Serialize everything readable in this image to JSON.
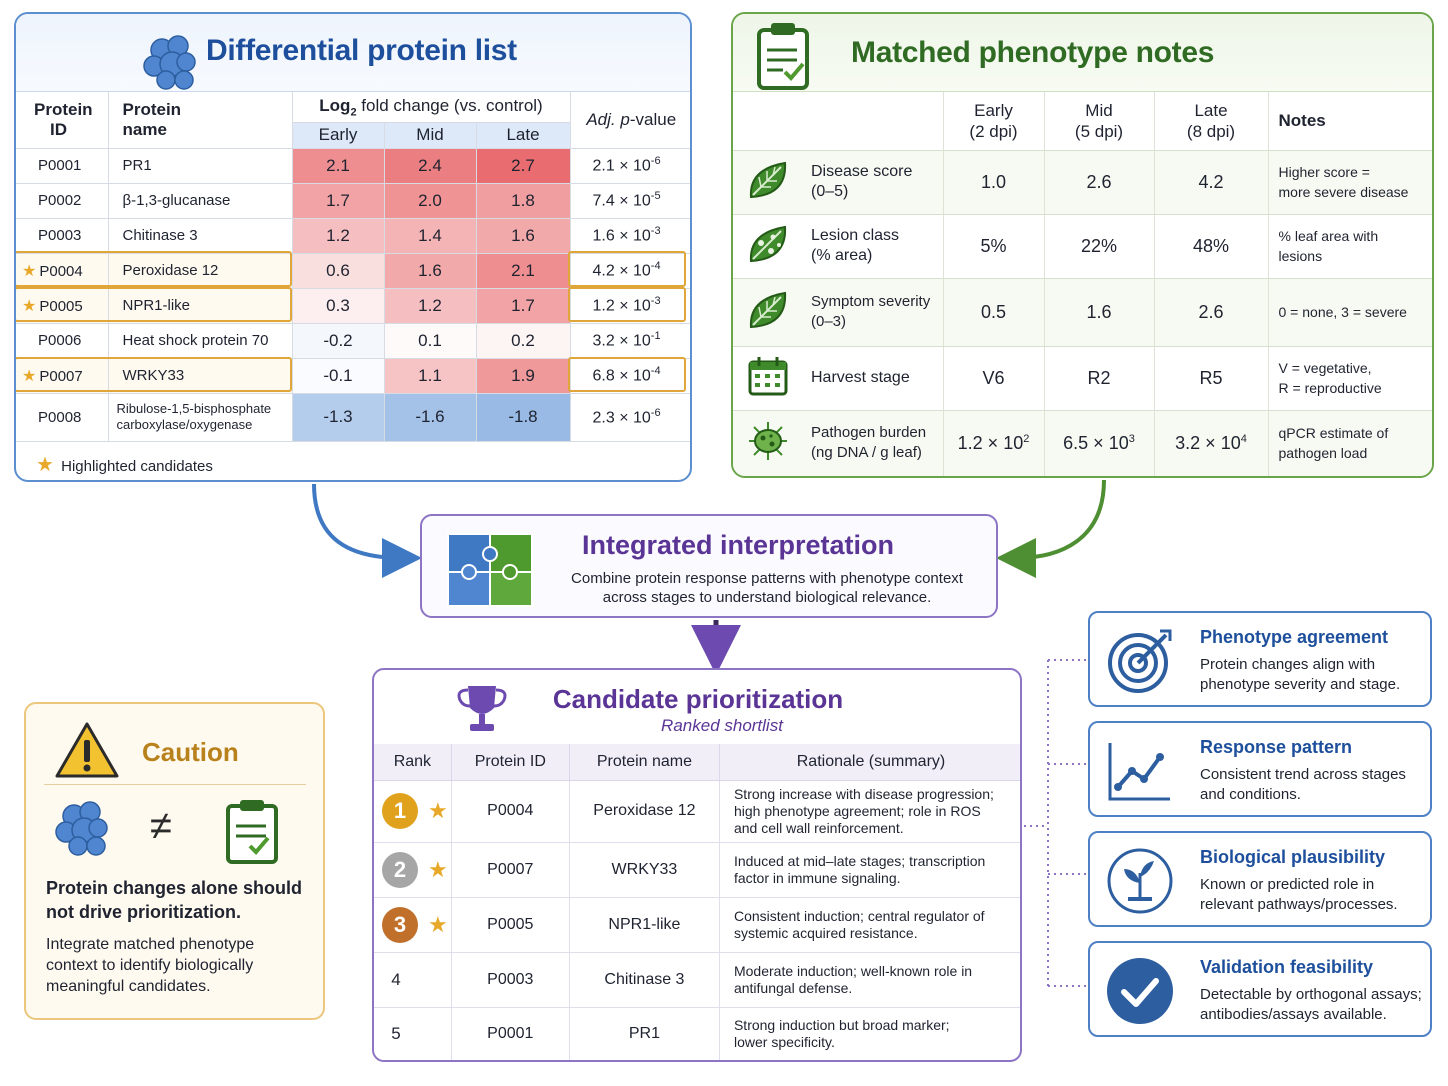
{
  "protein_panel": {
    "title": "Differential protein list",
    "col_id": [
      "Protein",
      "ID"
    ],
    "col_name": [
      "Protein",
      "name"
    ],
    "col_fc": "fold change (vs. control)",
    "col_fc_prefix": "Log",
    "col_fc_sub": "2",
    "stages": [
      "Early",
      "Mid",
      "Late"
    ],
    "col_p_prefix": "Adj. ",
    "col_p_italic": "p",
    "col_p_suffix": "-value",
    "rows": [
      {
        "id": "P0001",
        "name": "PR1",
        "early": "2.1",
        "mid": "2.4",
        "late": "2.7",
        "p_mant": "2.1 × 10",
        "p_exp": "-6",
        "highlight": false
      },
      {
        "id": "P0002",
        "name": "β-1,3-glucanase",
        "early": "1.7",
        "mid": "2.0",
        "late": "1.8",
        "p_mant": "7.4 × 10",
        "p_exp": "-5",
        "highlight": false
      },
      {
        "id": "P0003",
        "name": "Chitinase 3",
        "early": "1.2",
        "mid": "1.4",
        "late": "1.6",
        "p_mant": "1.6 × 10",
        "p_exp": "-3",
        "highlight": false
      },
      {
        "id": "P0004",
        "name": "Peroxidase 12",
        "early": "0.6",
        "mid": "1.6",
        "late": "2.1",
        "p_mant": "4.2 × 10",
        "p_exp": "-4",
        "highlight": true
      },
      {
        "id": "P0005",
        "name": "NPR1-like",
        "early": "0.3",
        "mid": "1.2",
        "late": "1.7",
        "p_mant": "1.2 × 10",
        "p_exp": "-3",
        "highlight": true
      },
      {
        "id": "P0006",
        "name": "Heat shock protein 70",
        "early": "-0.2",
        "mid": "0.1",
        "late": "0.2",
        "p_mant": "3.2 × 10",
        "p_exp": "-1",
        "highlight": false
      },
      {
        "id": "P0007",
        "name": "WRKY33",
        "early": "-0.1",
        "mid": "1.1",
        "late": "1.9",
        "p_mant": "6.8 × 10",
        "p_exp": "-4",
        "highlight": true
      },
      {
        "id": "P0008",
        "name": "Ribulose-1,5-bisphosphate",
        "name2": "carboxylase/oxygenase",
        "early": "-1.3",
        "mid": "-1.6",
        "late": "-1.8",
        "p_mant": "2.3 × 10",
        "p_exp": "-6",
        "highlight": false
      }
    ],
    "legend": "Highlighted candidates",
    "colors": {
      "pos_strong": "#e8686b",
      "neg_strong": "#5f93d6"
    }
  },
  "phenotype_panel": {
    "title": "Matched phenotype notes",
    "stage_headers": [
      {
        "name": "Early",
        "when": "(2 dpi)"
      },
      {
        "name": "Mid",
        "when": "(5 dpi)"
      },
      {
        "name": "Late",
        "when": "(8 dpi)"
      }
    ],
    "notes_header": "Notes",
    "rows": [
      {
        "icon": "leaf-icon",
        "label": "Disease score",
        "label2": "(0–5)",
        "early": "1.0",
        "mid": "2.6",
        "late": "4.2",
        "note": "Higher score =",
        "note2": "more severe disease"
      },
      {
        "icon": "spotted-leaf-icon",
        "label": "Lesion class",
        "label2": "(% area)",
        "early": "5%",
        "mid": "22%",
        "late": "48%",
        "note": "% leaf area with",
        "note2": "lesions"
      },
      {
        "icon": "leaf-icon",
        "label": "Symptom severity",
        "label2": "(0–3)",
        "early": "0.5",
        "mid": "1.6",
        "late": "2.6",
        "note": "0 = none, 3 = severe",
        "note2": ""
      },
      {
        "icon": "calendar-icon",
        "label": "Harvest stage",
        "label2": "",
        "early": "V6",
        "mid": "R2",
        "late": "R5",
        "note": "V = vegetative,",
        "note2": "R = reproductive"
      },
      {
        "icon": "pathogen-icon",
        "label": "Pathogen burden",
        "label2": "(ng DNA / g leaf)",
        "early": "1.2 × 10",
        "early_exp": "2",
        "mid": "6.5 × 10",
        "mid_exp": "3",
        "late": "3.2 × 10",
        "late_exp": "4",
        "note": "qPCR estimate of",
        "note2": "pathogen load"
      }
    ]
  },
  "integration": {
    "title": "Integrated interpretation",
    "line1": "Combine protein response patterns with phenotype context",
    "line2": "across stages to understand biological relevance."
  },
  "prioritization": {
    "title": "Candidate prioritization",
    "subtitle": "Ranked shortlist",
    "headers": [
      "Rank",
      "Protein ID",
      "Protein name",
      "Rationale (summary)"
    ],
    "rows": [
      {
        "rank": "1",
        "medal": "#e0a21c",
        "id": "P0004",
        "name": "Peroxidase 12",
        "r1": "Strong increase with disease progression;",
        "r2": "high phenotype agreement; role in ROS",
        "r3": "and cell wall reinforcement."
      },
      {
        "rank": "2",
        "medal": "#a6a6a6",
        "id": "P0007",
        "name": "WRKY33",
        "r1": "Induced at mid–late stages; transcription",
        "r2": "factor in immune signaling.",
        "r3": ""
      },
      {
        "rank": "3",
        "medal": "#c0702a",
        "id": "P0005",
        "name": "NPR1-like",
        "r1": "Consistent induction; central regulator of",
        "r2": "systemic acquired resistance.",
        "r3": ""
      },
      {
        "rank": "4",
        "medal": "",
        "id": "P0003",
        "name": "Chitinase 3",
        "r1": "Moderate induction; well-known role in",
        "r2": "antifungal defense.",
        "r3": ""
      },
      {
        "rank": "5",
        "medal": "",
        "id": "P0001",
        "name": "PR1",
        "r1": "Strong induction but broad marker;",
        "r2": "lower specificity.",
        "r3": ""
      }
    ]
  },
  "caution": {
    "title": "Caution",
    "neq": "≠",
    "warning": "Protein changes alone should not drive prioritization.",
    "advice": "Integrate matched phenotype context to identify biologically meaningful candidates."
  },
  "criteria": [
    {
      "icon": "target-icon",
      "title": "Phenotype agreement",
      "l1": "Protein changes align with",
      "l2": "phenotype severity and stage."
    },
    {
      "icon": "trend-chart-icon",
      "title": "Response pattern",
      "l1": "Consistent trend across stages",
      "l2": "and conditions."
    },
    {
      "icon": "plant-icon",
      "title": "Biological plausibility",
      "l1": "Known or predicted role in",
      "l2": "relevant pathways/processes."
    },
    {
      "icon": "checkmark-icon",
      "title": "Validation feasibility",
      "l1": "Detectable by orthogonal assays;",
      "l2": "antibodies/assays available."
    }
  ]
}
